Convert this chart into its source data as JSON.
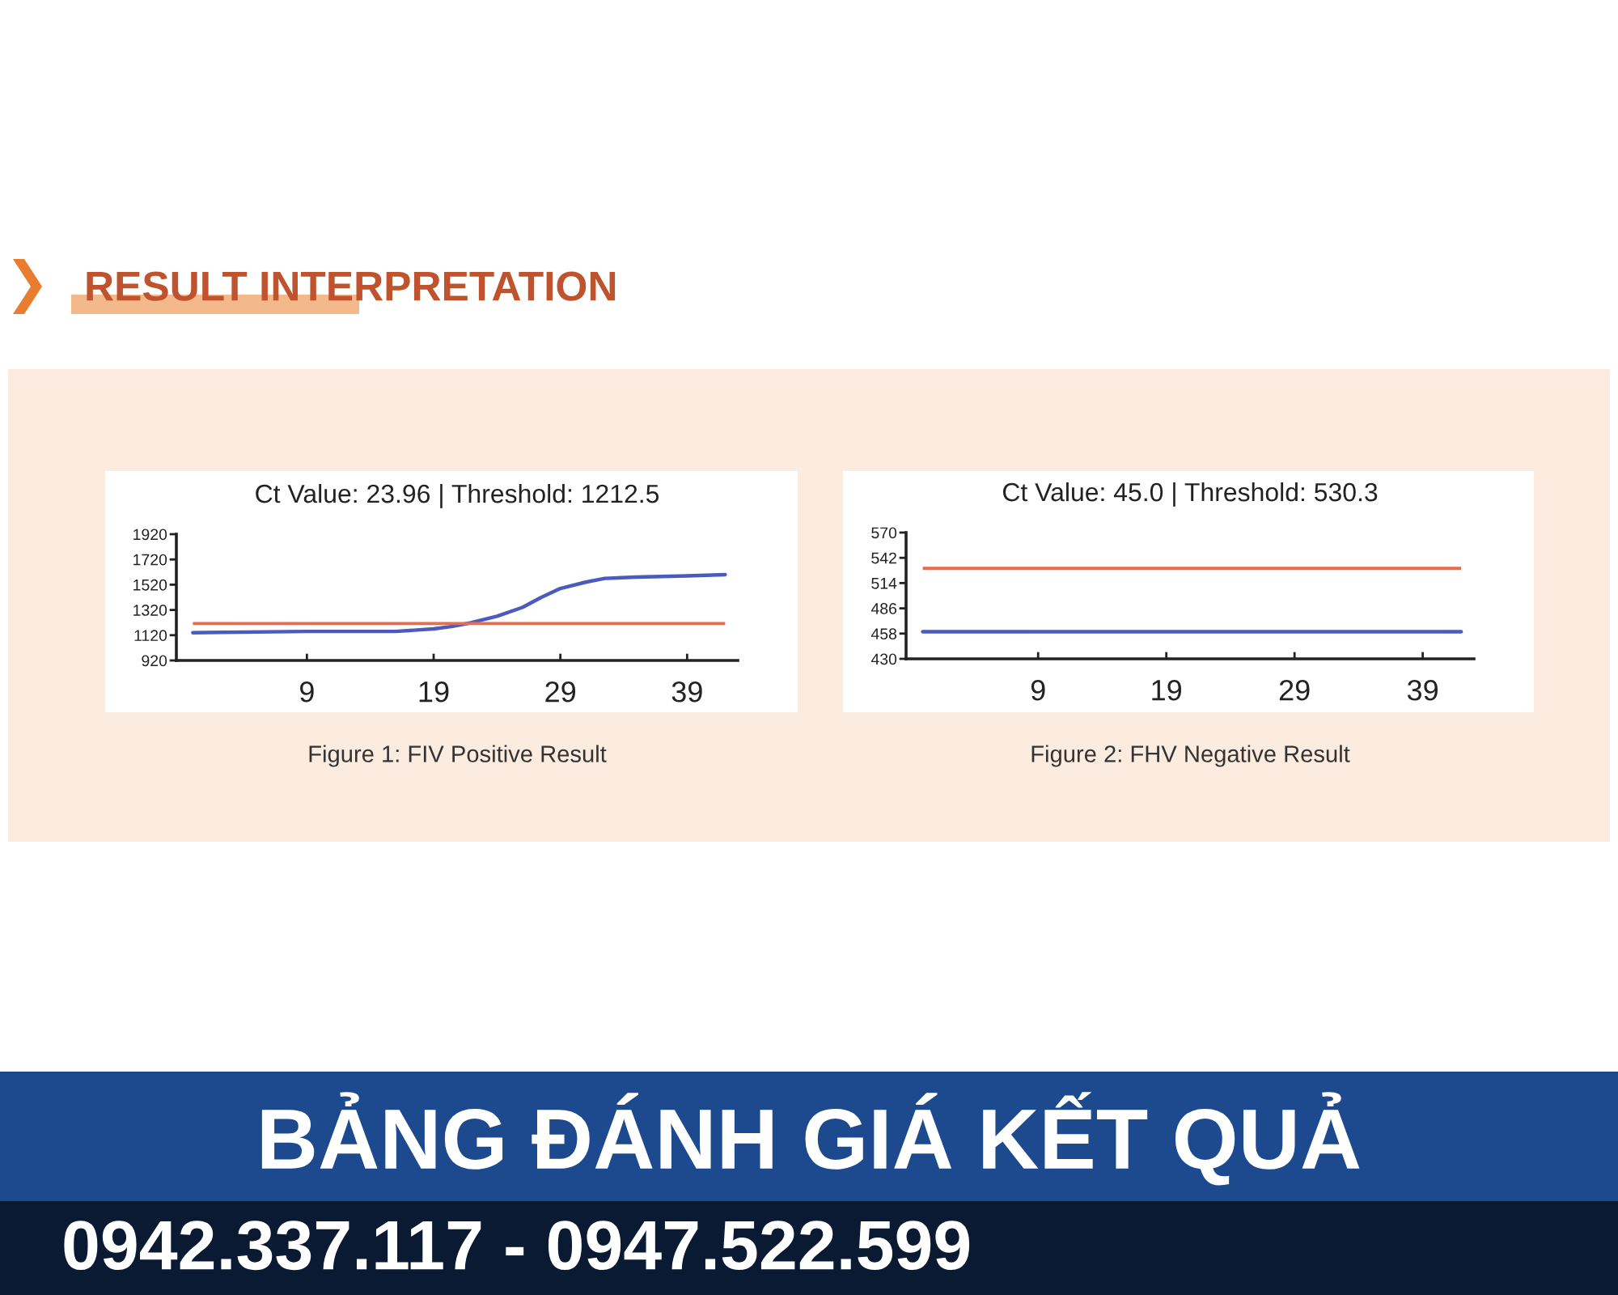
{
  "chart_data": [
    {
      "type": "other",
      "title": "RESULT INTERPRETATION"
    },
    {
      "type": "line",
      "title": "Ct Value: 23.96 | Threshold: 1212.5",
      "annotations": [
        "Figure 1: FIV Positive Result"
      ],
      "xlim": [
        -1.3,
        43
      ],
      "xticks": [
        9,
        19,
        29,
        39
      ],
      "ylim": [
        920,
        1920
      ],
      "yticks": [
        920,
        1120,
        1320,
        1520,
        1720,
        1920
      ],
      "series": [
        {
          "color": "#4b5bbd",
          "x": [
            0,
            9,
            16,
            19,
            20.5,
            22,
            24,
            26,
            27.5,
            29,
            31,
            32.5,
            35,
            39,
            42
          ],
          "values": [
            1140,
            1150,
            1150,
            1170,
            1190,
            1220,
            1270,
            1340,
            1420,
            1490,
            1540,
            1570,
            1580,
            1590,
            1600
          ]
        }
      ],
      "ref_lines": [
        {
          "axis": "y",
          "value": 1212.5,
          "color": "#ec6a48"
        }
      ]
    },
    {
      "type": "line",
      "title": "Ct Value: 45.0 | Threshold: 530.3",
      "annotations": [
        "Figure 2: FHV Negative Result"
      ],
      "xlim": [
        -1.3,
        43
      ],
      "xticks": [
        9,
        19,
        29,
        39
      ],
      "ylim": [
        430,
        570
      ],
      "yticks": [
        430,
        458,
        486,
        514,
        542,
        570
      ],
      "series": [
        {
          "color": "#4b5bbd",
          "x": [
            0,
            42
          ],
          "values": [
            460,
            460
          ]
        }
      ],
      "ref_lines": [
        {
          "axis": "y",
          "value": 530.3,
          "color": "#ec6a48"
        }
      ]
    },
    {
      "type": "other",
      "title": "BẢNG ĐÁNH GIÁ KẾT QUẢ",
      "annotations": [
        "0942.337.117 - 0947.522.599"
      ]
    }
  ]
}
